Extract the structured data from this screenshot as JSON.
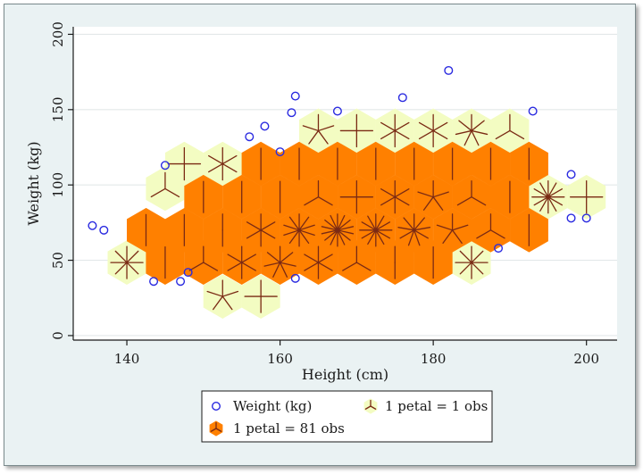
{
  "chart_data": {
    "type": "scatter",
    "subtype": "sunflower",
    "title": "",
    "xlabel": "Height (cm)",
    "ylabel": "Weight (kg)",
    "xlim": [
      133,
      204
    ],
    "ylim": [
      -3,
      205
    ],
    "xticks": [
      140,
      160,
      180,
      200
    ],
    "yticks": [
      0,
      50,
      100,
      150,
      200
    ],
    "grid": "horizontal",
    "colors": {
      "marker": "#2a2ae0",
      "light_hex": "#f3fcc2",
      "dark_hex": "#ff8000",
      "petal": "#7a2a14",
      "background": "#eaf2f3",
      "plot": "#ffffff"
    },
    "legend": {
      "placement": "bottom",
      "entries": [
        {
          "kind": "marker",
          "label": "Weight (kg)"
        },
        {
          "kind": "light",
          "label": "1 petal = 1 obs"
        },
        {
          "kind": "dark",
          "label": "1 petal = 81 obs"
        }
      ]
    },
    "points": [
      {
        "x": 135.5,
        "y": 73
      },
      {
        "x": 137,
        "y": 70
      },
      {
        "x": 143.5,
        "y": 36
      },
      {
        "x": 145,
        "y": 113
      },
      {
        "x": 147,
        "y": 36
      },
      {
        "x": 148,
        "y": 42
      },
      {
        "x": 156,
        "y": 132
      },
      {
        "x": 158,
        "y": 139
      },
      {
        "x": 160,
        "y": 122
      },
      {
        "x": 161.5,
        "y": 148
      },
      {
        "x": 162,
        "y": 159
      },
      {
        "x": 162,
        "y": 38
      },
      {
        "x": 167.5,
        "y": 149
      },
      {
        "x": 176,
        "y": 158
      },
      {
        "x": 182,
        "y": 176
      },
      {
        "x": 188.5,
        "y": 58
      },
      {
        "x": 193,
        "y": 149
      },
      {
        "x": 198,
        "y": 107
      },
      {
        "x": 198,
        "y": 78
      },
      {
        "x": 200,
        "y": 78
      }
    ],
    "sunflowers": [
      {
        "x": 140,
        "y": 48.5,
        "type": "light",
        "petals": 8
      },
      {
        "x": 147.5,
        "y": 114,
        "type": "light",
        "petals": 4
      },
      {
        "x": 152.5,
        "y": 114,
        "type": "light",
        "petals": 6
      },
      {
        "x": 145,
        "y": 97.5,
        "type": "light",
        "petals": 3
      },
      {
        "x": 152.5,
        "y": 26,
        "type": "light",
        "petals": 5
      },
      {
        "x": 157.5,
        "y": 26,
        "type": "light",
        "petals": 4
      },
      {
        "x": 165,
        "y": 136,
        "type": "light",
        "petals": 5
      },
      {
        "x": 170,
        "y": 136,
        "type": "light",
        "petals": 4
      },
      {
        "x": 175,
        "y": 136,
        "type": "light",
        "petals": 6
      },
      {
        "x": 180,
        "y": 136,
        "type": "light",
        "petals": 6
      },
      {
        "x": 185,
        "y": 136,
        "type": "light",
        "petals": 7
      },
      {
        "x": 190,
        "y": 136,
        "type": "light",
        "petals": 3
      },
      {
        "x": 185,
        "y": 48.5,
        "type": "light",
        "petals": 8
      },
      {
        "x": 195,
        "y": 92,
        "type": "light",
        "petals": 12
      },
      {
        "x": 200,
        "y": 92,
        "type": "light",
        "petals": 4
      },
      {
        "x": 142.5,
        "y": 70,
        "type": "dark",
        "petals": 1
      },
      {
        "x": 147.5,
        "y": 70,
        "type": "dark",
        "petals": 1
      },
      {
        "x": 145,
        "y": 48.5,
        "type": "dark",
        "petals": 1
      },
      {
        "x": 150,
        "y": 48.5,
        "type": "dark",
        "petals": 3
      },
      {
        "x": 150,
        "y": 92,
        "type": "dark",
        "petals": 1
      },
      {
        "x": 155,
        "y": 92,
        "type": "dark",
        "petals": 1
      },
      {
        "x": 160,
        "y": 92,
        "type": "dark",
        "petals": 1
      },
      {
        "x": 165,
        "y": 92,
        "type": "dark",
        "petals": 3
      },
      {
        "x": 170,
        "y": 92,
        "type": "dark",
        "petals": 4
      },
      {
        "x": 175,
        "y": 92,
        "type": "dark",
        "petals": 6
      },
      {
        "x": 180,
        "y": 92,
        "type": "dark",
        "petals": 5
      },
      {
        "x": 185,
        "y": 92,
        "type": "dark",
        "petals": 3
      },
      {
        "x": 190,
        "y": 92,
        "type": "dark",
        "petals": 1
      },
      {
        "x": 152.5,
        "y": 70,
        "type": "dark",
        "petals": 2
      },
      {
        "x": 157.5,
        "y": 70,
        "type": "dark",
        "petals": 6
      },
      {
        "x": 162.5,
        "y": 70,
        "type": "dark",
        "petals": 10
      },
      {
        "x": 167.5,
        "y": 70,
        "type": "dark",
        "petals": 14
      },
      {
        "x": 172.5,
        "y": 70,
        "type": "dark",
        "petals": 12
      },
      {
        "x": 177.5,
        "y": 70,
        "type": "dark",
        "petals": 9
      },
      {
        "x": 182.5,
        "y": 70,
        "type": "dark",
        "petals": 5
      },
      {
        "x": 187.5,
        "y": 70,
        "type": "dark",
        "petals": 3
      },
      {
        "x": 192.5,
        "y": 70,
        "type": "dark",
        "petals": 1
      },
      {
        "x": 155,
        "y": 48.5,
        "type": "dark",
        "petals": 6
      },
      {
        "x": 160,
        "y": 48.5,
        "type": "dark",
        "petals": 7
      },
      {
        "x": 165,
        "y": 48.5,
        "type": "dark",
        "petals": 6
      },
      {
        "x": 170,
        "y": 48.5,
        "type": "dark",
        "petals": 3
      },
      {
        "x": 175,
        "y": 48.5,
        "type": "dark",
        "petals": 2
      },
      {
        "x": 180,
        "y": 48.5,
        "type": "dark",
        "petals": 1
      },
      {
        "x": 157.5,
        "y": 114,
        "type": "dark",
        "petals": 1
      },
      {
        "x": 162.5,
        "y": 114,
        "type": "dark",
        "petals": 1
      },
      {
        "x": 167.5,
        "y": 114,
        "type": "dark",
        "petals": 1
      },
      {
        "x": 172.5,
        "y": 114,
        "type": "dark",
        "petals": 1
      },
      {
        "x": 177.5,
        "y": 114,
        "type": "dark",
        "petals": 1
      },
      {
        "x": 182.5,
        "y": 114,
        "type": "dark",
        "petals": 1
      },
      {
        "x": 187.5,
        "y": 114,
        "type": "dark",
        "petals": 1
      },
      {
        "x": 192.5,
        "y": 114,
        "type": "dark",
        "petals": 1
      }
    ]
  }
}
